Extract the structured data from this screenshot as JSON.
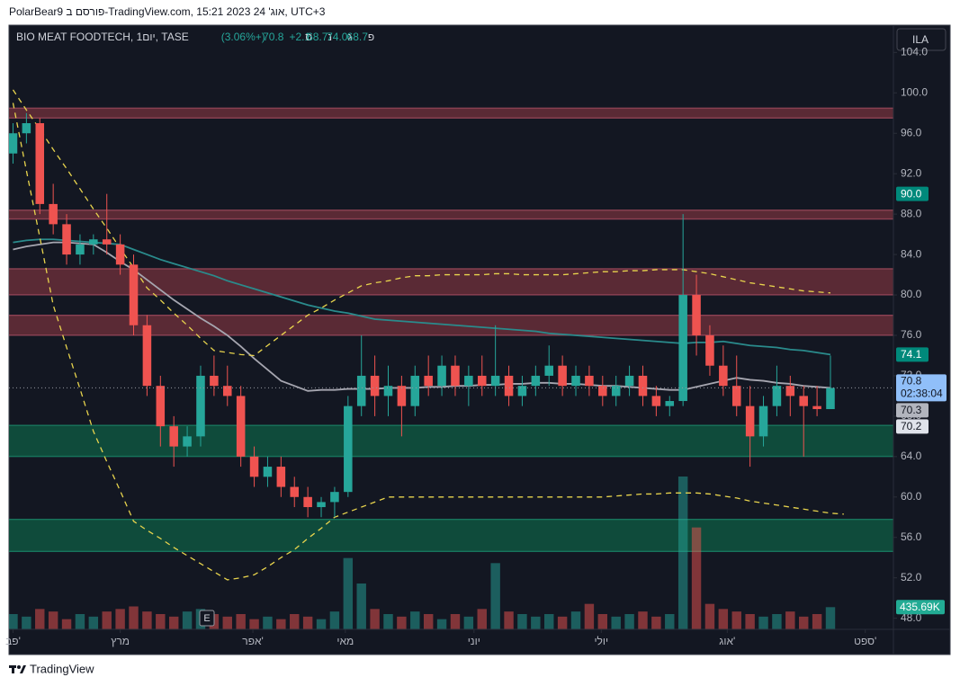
{
  "chart_data": {
    "type": "candlestick",
    "publisher": "PolarBear9 פורסם ב-TradingView.com, 15:21 2023 אוג' 24, UTC+3",
    "title": "BIO MEAT FOODTECH, 1יום, TASE",
    "legend": [
      {
        "prefix": "פ",
        "value": "68.7"
      },
      {
        "prefix": "ג",
        "value": "74.0"
      },
      {
        "prefix": "נ",
        "value": "68.7"
      },
      {
        "prefix": "ס",
        "value": "70.8"
      }
    ],
    "change": "+2.1 (+3.06%)",
    "currency": "ILA",
    "earnings_marker": "E",
    "brand": "TradingView",
    "up_color": "#26a69a",
    "down_color": "#ef5350",
    "xlim": [
      -0.3,
      65.7
    ],
    "ylim": [
      46.9,
      106.7
    ],
    "xticks": [
      {
        "value": 0,
        "label": "פב'"
      },
      {
        "value": 8,
        "label": "מרץ"
      },
      {
        "value": 17.9,
        "label": "אפר'"
      },
      {
        "value": 24.8,
        "label": "מאי"
      },
      {
        "value": 34.4,
        "label": "יוני"
      },
      {
        "value": 43.9,
        "label": "יולי"
      },
      {
        "value": 53.3,
        "label": "אוג'"
      },
      {
        "value": 63.6,
        "label": "ספט'"
      }
    ],
    "yticks": [
      {
        "value": 48,
        "label": "48.0"
      },
      {
        "value": 52,
        "label": "52.0"
      },
      {
        "value": 56,
        "label": "56.0"
      },
      {
        "value": 60,
        "label": "60.0"
      },
      {
        "value": 64,
        "label": "64.0"
      },
      {
        "value": 68,
        "label": "68.0"
      },
      {
        "value": 72,
        "label": "72.0"
      },
      {
        "value": 76,
        "label": "76.0"
      },
      {
        "value": 80,
        "label": "80.0"
      },
      {
        "value": 84,
        "label": "84.0"
      },
      {
        "value": 88,
        "label": "88.0"
      },
      {
        "value": 92,
        "label": "92.0"
      },
      {
        "value": 96,
        "label": "96.0"
      },
      {
        "value": 100,
        "label": "100.0"
      },
      {
        "value": 104,
        "label": "104.0"
      }
    ],
    "zones": [
      {
        "from": 97.5,
        "to": 98.5,
        "color": "#5a2a35"
      },
      {
        "from": 87.5,
        "to": 88.4,
        "color": "#5a2a35"
      },
      {
        "from": 80,
        "to": 82.6,
        "color": "#5a2a35"
      },
      {
        "from": 76,
        "to": 78,
        "color": "#5a2a35"
      },
      {
        "from": 64,
        "to": 67.1,
        "color": "#0f4b3b"
      },
      {
        "from": 54.6,
        "to": 57.8,
        "color": "#0f4b3b"
      }
    ],
    "ohlc": [
      [
        94,
        97,
        93,
        96
      ],
      [
        96,
        98,
        95,
        97
      ],
      [
        97,
        97.5,
        88,
        89
      ],
      [
        89,
        91,
        86,
        87
      ],
      [
        87,
        88,
        83,
        84
      ],
      [
        84,
        86,
        83,
        85
      ],
      [
        85,
        86,
        84,
        85.5
      ],
      [
        85.5,
        90,
        84,
        85
      ],
      [
        85,
        86,
        82,
        83
      ],
      [
        83,
        84,
        76,
        77
      ],
      [
        77,
        78,
        70,
        71
      ],
      [
        71,
        72,
        65,
        67
      ],
      [
        67,
        68,
        63,
        65
      ],
      [
        65,
        67,
        64,
        66
      ],
      [
        66,
        73,
        65,
        72
      ],
      [
        72,
        74,
        70,
        71
      ],
      [
        71,
        73,
        69,
        70
      ],
      [
        70,
        71,
        63,
        64
      ],
      [
        64,
        65,
        61,
        62
      ],
      [
        62,
        64,
        61,
        63
      ],
      [
        63,
        64,
        60,
        61
      ],
      [
        61,
        62,
        59,
        60
      ],
      [
        60,
        61,
        58,
        59
      ],
      [
        59,
        60,
        58,
        59.5
      ],
      [
        59.5,
        61,
        58,
        60.5
      ],
      [
        60.5,
        70,
        60,
        69
      ],
      [
        69,
        76,
        68,
        72
      ],
      [
        72,
        74,
        68,
        70
      ],
      [
        70,
        73,
        68,
        71
      ],
      [
        71,
        72,
        66,
        69
      ],
      [
        69,
        73,
        68,
        72
      ],
      [
        72,
        74,
        70,
        71
      ],
      [
        71,
        74,
        70,
        73
      ],
      [
        73,
        74,
        70,
        71
      ],
      [
        71,
        73,
        69,
        72
      ],
      [
        72,
        74,
        70,
        71
      ],
      [
        71,
        77,
        70,
        72
      ],
      [
        72,
        73,
        69,
        70
      ],
      [
        70,
        72,
        69,
        71
      ],
      [
        71,
        73,
        70,
        72
      ],
      [
        72,
        75,
        71,
        73
      ],
      [
        73,
        74,
        70,
        71
      ],
      [
        71,
        73,
        70,
        72
      ],
      [
        72,
        73,
        70,
        71
      ],
      [
        71,
        72,
        69,
        70
      ],
      [
        70,
        72,
        69,
        71
      ],
      [
        71,
        73,
        70,
        72
      ],
      [
        72,
        73,
        69,
        70
      ],
      [
        70,
        71,
        68,
        69
      ],
      [
        69,
        70,
        68,
        69.5
      ],
      [
        69.5,
        88,
        69,
        80
      ],
      [
        80,
        82,
        74,
        76
      ],
      [
        76,
        77,
        72,
        73
      ],
      [
        73,
        75,
        70,
        71
      ],
      [
        71,
        74,
        68,
        69
      ],
      [
        69,
        71,
        63,
        66
      ],
      [
        66,
        70,
        65,
        69
      ],
      [
        69,
        73,
        68,
        71
      ],
      [
        71,
        72,
        68,
        70
      ],
      [
        70,
        71,
        64,
        69
      ],
      [
        69,
        71,
        68,
        68.7
      ],
      [
        68.7,
        74,
        68.7,
        70.8
      ]
    ],
    "volume": {
      "values": [
        300,
        250,
        400,
        350,
        200,
        300,
        250,
        350,
        400,
        450,
        350,
        300,
        250,
        350,
        400,
        300,
        250,
        300,
        200,
        250,
        200,
        300,
        250,
        200,
        350,
        1400,
        900,
        400,
        300,
        250,
        350,
        300,
        200,
        300,
        250,
        400,
        1300,
        350,
        300,
        250,
        300,
        250,
        350,
        500,
        300,
        250,
        300,
        350,
        250,
        300,
        3000,
        2000,
        500,
        400,
        350,
        300,
        250,
        300,
        350,
        250,
        300,
        435.69
      ],
      "last_label": "435.69K",
      "label_color": "#22ab94"
    },
    "lines": [
      {
        "color": "#2a8b8c",
        "dashed": false,
        "values": [
          85.2,
          85.4,
          85.5,
          85.5,
          85.4,
          85.3,
          85.2,
          85.1,
          85,
          84.5,
          84,
          83.5,
          83.1,
          82.7,
          82.3,
          81.9,
          81.4,
          81,
          80.6,
          80.2,
          79.8,
          79.4,
          79,
          78.7,
          78.4,
          78.2,
          77.9,
          77.6,
          77.5,
          77.4,
          77.3,
          77.2,
          77.1,
          77,
          76.9,
          76.8,
          76.7,
          76.6,
          76.5,
          76.4,
          76.2,
          76.1,
          76,
          75.9,
          75.8,
          75.7,
          75.6,
          75.5,
          75.4,
          75.3,
          75.2,
          75.3,
          75.3,
          75.4,
          75.2,
          75,
          74.9,
          74.8,
          74.6,
          74.5,
          74.3,
          74.1
        ]
      },
      {
        "color": "#a6a6b0",
        "dashed": false,
        "values": [
          84.5,
          84.8,
          85,
          85.2,
          85.2,
          85.1,
          85,
          84.2,
          83.3,
          82.5,
          81.5,
          80.5,
          79.5,
          78.6,
          77.7,
          76.9,
          76,
          74.9,
          73.7,
          72.6,
          71.5,
          71,
          70.5,
          70.6,
          70.6,
          70.7,
          70.7,
          70.7,
          70.8,
          70.8,
          70.8,
          70.9,
          70.9,
          71,
          71,
          71.1,
          71.1,
          71.2,
          71.2,
          71.3,
          71.3,
          71.2,
          71.2,
          71.1,
          71,
          71,
          70.9,
          70.8,
          70.7,
          70.6,
          70.6,
          70.9,
          71.2,
          71.5,
          71.8,
          71.6,
          71.5,
          71.3,
          71.2,
          71,
          70.9,
          70.8
        ]
      },
      {
        "color": "#e8d44d",
        "dashed": true,
        "values": [
          100.3,
          98.3,
          96.4,
          94.4,
          92.5,
          90.5,
          88.5,
          86.6,
          84.6,
          82.7,
          80.7,
          79.5,
          78.2,
          77,
          75.7,
          74.5,
          74.3,
          74.1,
          74,
          75,
          76,
          77,
          78,
          78.7,
          79.5,
          80.2,
          80.9,
          81.2,
          81.4,
          81.7,
          81.9,
          81.9,
          82,
          82,
          82,
          82,
          82.1,
          82.1,
          82,
          82,
          82,
          82,
          82.1,
          82.2,
          82.3,
          82.3,
          82.4,
          82.4,
          82.5,
          82.5,
          82.5,
          82.3,
          82.1,
          81.8,
          81.5,
          81.2,
          81,
          80.8,
          80.6,
          80.4,
          80.3,
          80.2
        ]
      },
      {
        "color": "#e8d44d",
        "dashed": true,
        "values": [
          99,
          92.3,
          85.7,
          79,
          74.8,
          70.7,
          66.5,
          63.5,
          60.6,
          57.6,
          56.7,
          55.9,
          55,
          54.2,
          53.4,
          52.6,
          51.8,
          52,
          52.3,
          53.1,
          54,
          54.8,
          55.9,
          56.9,
          58,
          58.5,
          59,
          59.5,
          60,
          60,
          60,
          60,
          60,
          60,
          60,
          60,
          60,
          60,
          60,
          60,
          60,
          60,
          60,
          60,
          60,
          60.1,
          60.2,
          60.3,
          60.3,
          60.4,
          60.4,
          60.4,
          60.3,
          60.1,
          59.9,
          59.6,
          59.4,
          59.2,
          59,
          58.8,
          58.6,
          58.4,
          58.3
        ]
      }
    ],
    "last_price": {
      "value": 70.8,
      "label": "70.8",
      "countdown": "02:38:04",
      "color": "#90bff9"
    },
    "price_labels": [
      {
        "value": 90,
        "label": "90.0",
        "color": "#00897b",
        "text_color": "#ffffff"
      },
      {
        "value": 74.1,
        "label": "74.1",
        "color": "#00897b",
        "text_color": "#ffffff"
      },
      {
        "value": 70.3,
        "label": "70.3",
        "color": "#b2b5be",
        "text_color": "#131722"
      },
      {
        "value": 70.2,
        "label": "70.2",
        "color": "#e0e3eb",
        "text_color": "#131722"
      }
    ]
  }
}
